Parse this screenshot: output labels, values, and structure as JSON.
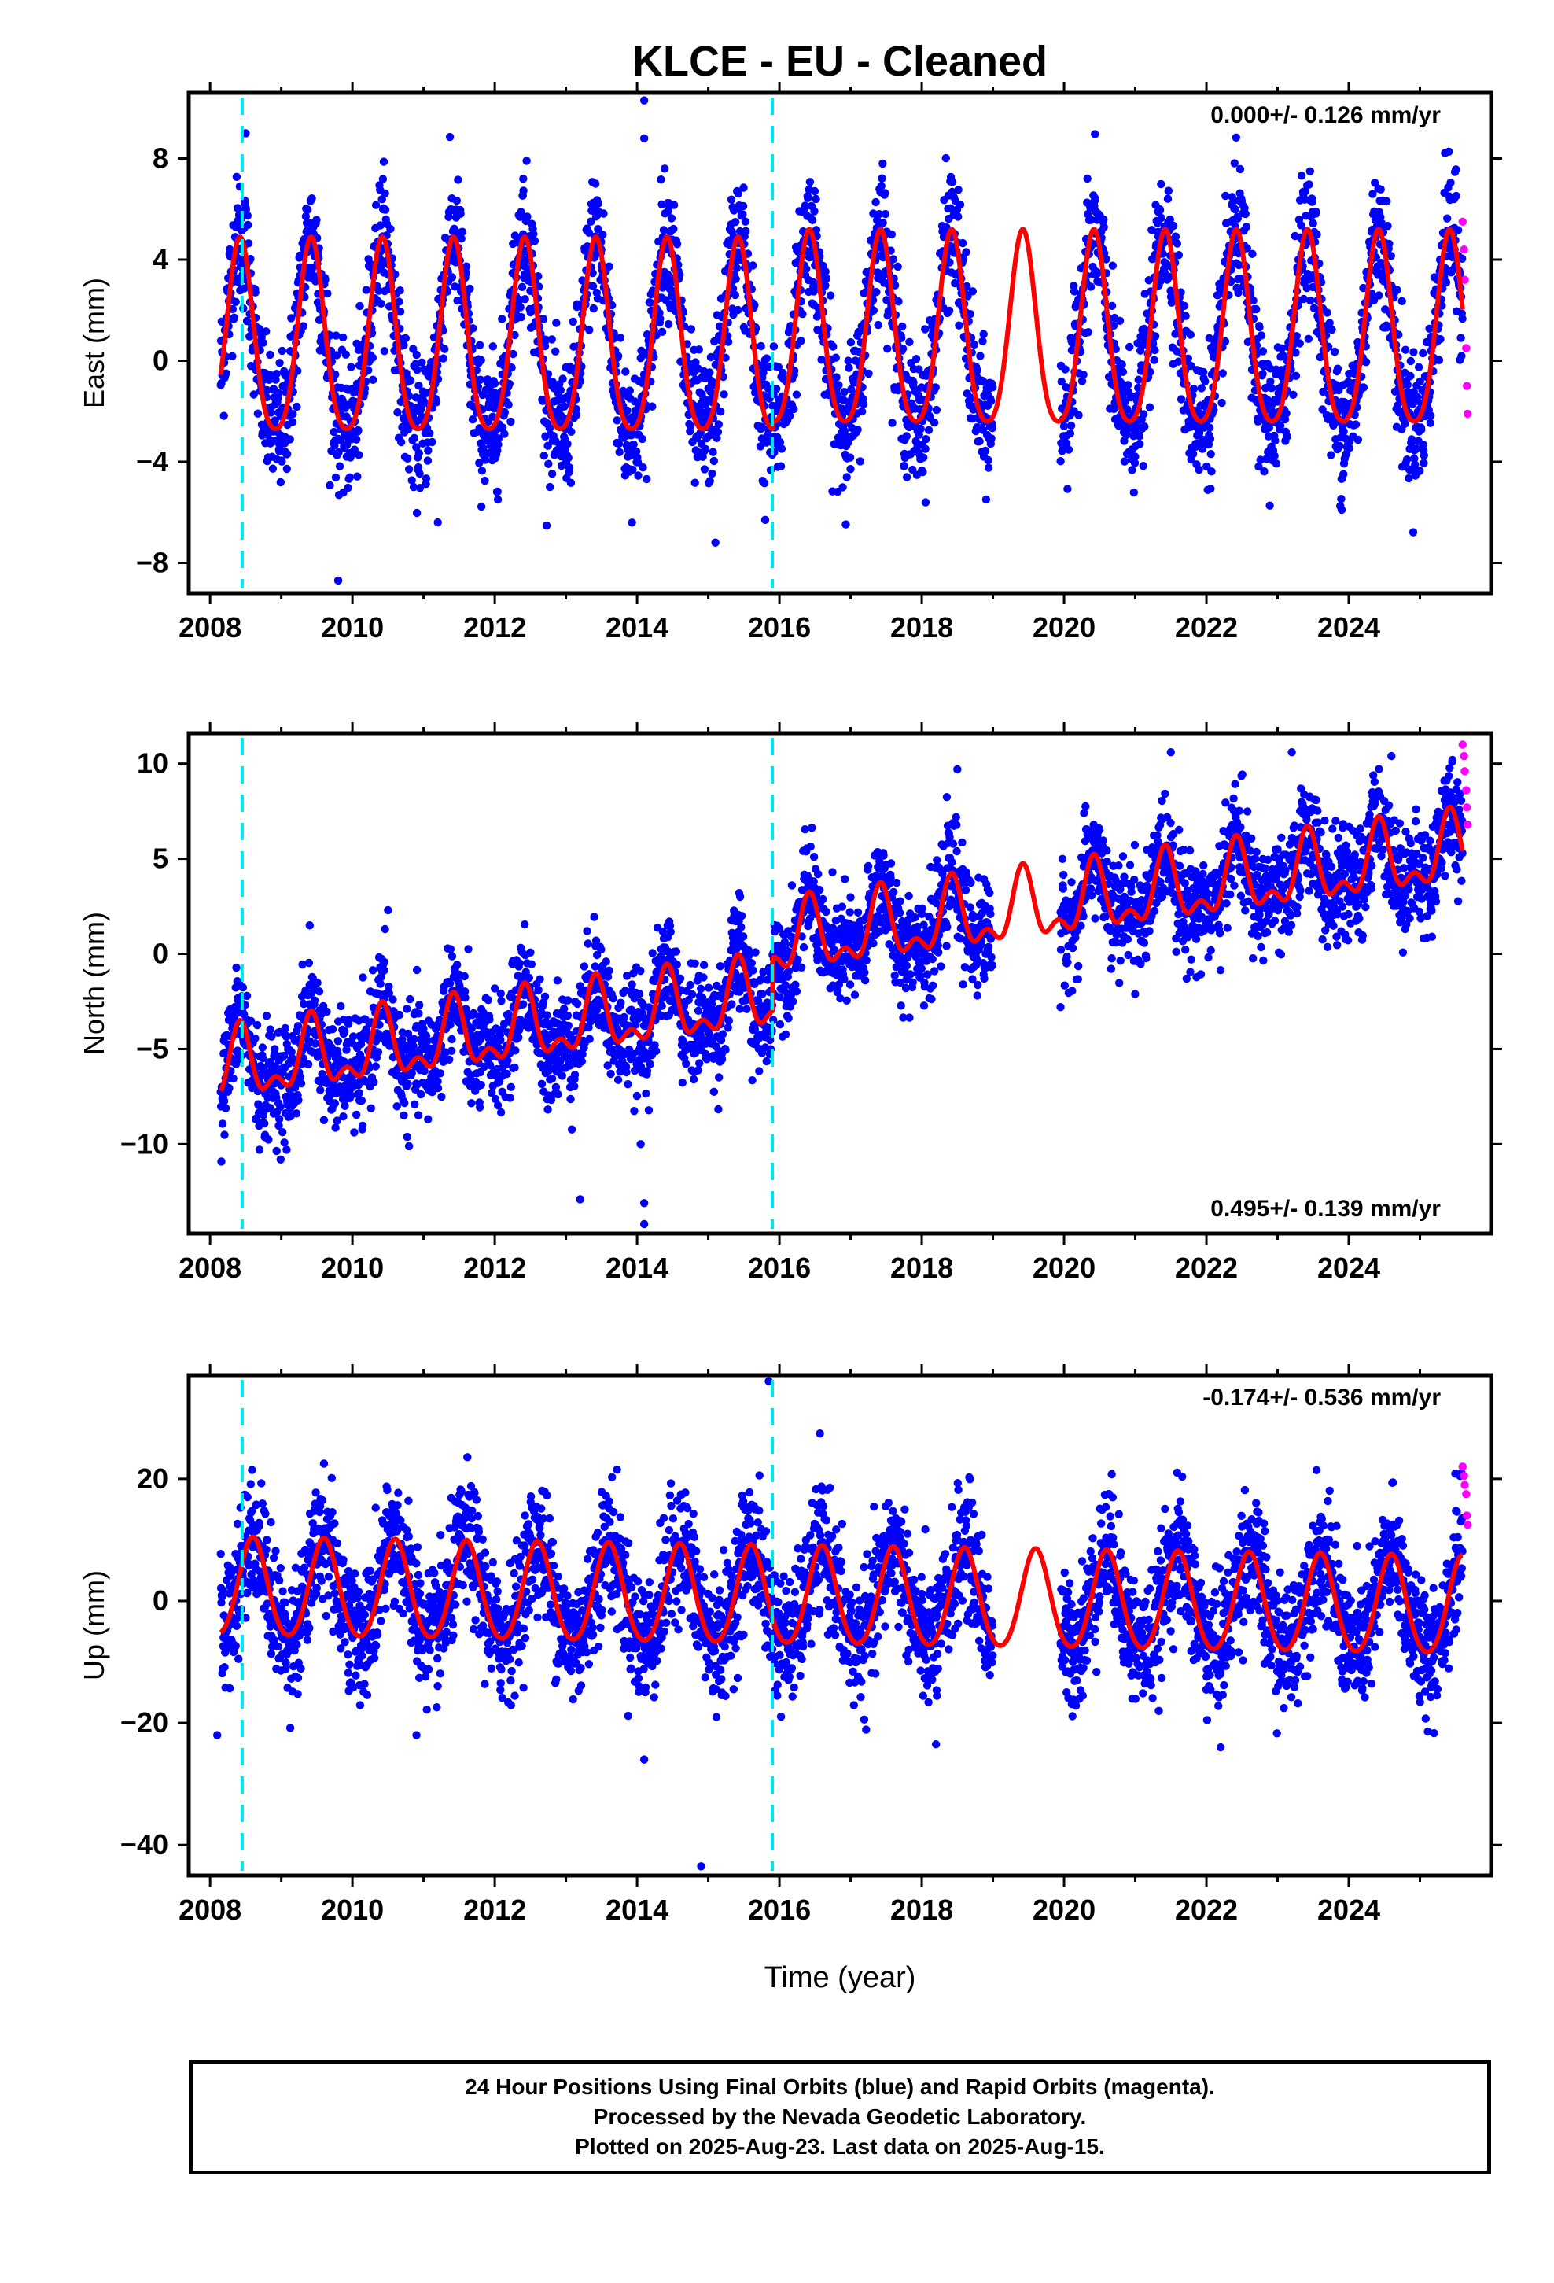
{
  "chart_data": {
    "title": "KLCE  - EU - Cleaned",
    "xlabel": "Time (year)",
    "xlim": [
      2007.7,
      2026.0
    ],
    "xticks": [
      "2008",
      "2010",
      "2012",
      "2014",
      "2016",
      "2018",
      "2020",
      "2022",
      "2024"
    ],
    "xtick_values": [
      2008,
      2010,
      2012,
      2014,
      2016,
      2018,
      2020,
      2022,
      2024
    ],
    "equipment_change_lines": [
      2008.45,
      2015.9
    ],
    "colors": {
      "final_orbits": "#0000ff",
      "rapid_orbits": "#ff00ff",
      "model": "#ff0000",
      "steps": "#00e5ee"
    },
    "panels": [
      {
        "id": "east",
        "type": "scatter",
        "ylabel": "East (mm)",
        "ylim": [
          -9.2,
          10.6
        ],
        "yticks": [
          "8",
          "4",
          "0",
          "−4",
          "−8"
        ],
        "ytick_values": [
          8,
          4,
          0,
          -4,
          -8
        ],
        "velocity": "0.000+/- 0.126 mm/yr",
        "velocity_position": "top-right",
        "model": {
          "trend_mm_per_yr": 0.0,
          "offset_2008": 0.5,
          "annual_amplitude": 3.8,
          "semiannual_amplitude": 0.6,
          "annual_peak_phase": 0.42,
          "steps": [
            {
              "year": 2015.9,
              "value": 0.3
            }
          ],
          "start": 2008.15,
          "end": 2025.6
        },
        "scatter": {
          "noise": 1.3,
          "gaps": [
            [
              2019.0,
              2019.95
            ]
          ]
        },
        "outliers": [
          {
            "x": 2008.5,
            "y": 9.0
          },
          {
            "x": 2009.8,
            "y": -8.7
          },
          {
            "x": 2014.1,
            "y": 10.3
          },
          {
            "x": 2014.1,
            "y": 8.8
          },
          {
            "x": 2015.1,
            "y": -7.2
          },
          {
            "x": 2015.8,
            "y": -6.3
          },
          {
            "x": 2023.9,
            "y": -5.9
          },
          {
            "x": 2011.2,
            "y": -6.4
          },
          {
            "x": 2012.4,
            "y": 7.2
          }
        ],
        "rapid": [
          {
            "x": 2025.6,
            "y": 5.5
          },
          {
            "x": 2025.62,
            "y": 4.4
          },
          {
            "x": 2025.63,
            "y": 3.2
          },
          {
            "x": 2025.65,
            "y": 0.5
          },
          {
            "x": 2025.66,
            "y": -1.0
          },
          {
            "x": 2025.67,
            "y": -2.1
          }
        ]
      },
      {
        "id": "north",
        "type": "scatter",
        "ylabel": "North (mm)",
        "ylim": [
          -14.7,
          11.6
        ],
        "yticks": [
          "10",
          "5",
          "0",
          "−5",
          "−10"
        ],
        "ytick_values": [
          10,
          5,
          0,
          -5,
          -10
        ],
        "velocity": "0.495+/- 0.139 mm/yr",
        "velocity_position": "bottom-right",
        "model": {
          "trend_mm_per_yr": 0.495,
          "offset_2008": -6.2,
          "annual_amplitude": 1.6,
          "semiannual_amplitude": 0.9,
          "annual_peak_phase": 0.42,
          "steps": [
            {
              "year": 2015.9,
              "value": 2.8
            }
          ],
          "start": 2008.15,
          "end": 2025.6
        },
        "scatter": {
          "noise": 1.4,
          "gaps": [
            [
              2019.0,
              2019.95
            ]
          ]
        },
        "outliers": [
          {
            "x": 2013.2,
            "y": -12.9
          },
          {
            "x": 2014.1,
            "y": -14.2
          },
          {
            "x": 2014.1,
            "y": -13.1
          },
          {
            "x": 2014.05,
            "y": -10.0
          },
          {
            "x": 2010.5,
            "y": 2.3
          },
          {
            "x": 2009.4,
            "y": 1.5
          },
          {
            "x": 2018.5,
            "y": 9.7
          },
          {
            "x": 2021.5,
            "y": 10.6
          },
          {
            "x": 2023.2,
            "y": 10.6
          },
          {
            "x": 2024.6,
            "y": 10.4
          },
          {
            "x": 2019.95,
            "y": -2.8
          }
        ],
        "rapid": [
          {
            "x": 2025.6,
            "y": 11.0
          },
          {
            "x": 2025.62,
            "y": 10.4
          },
          {
            "x": 2025.63,
            "y": 9.6
          },
          {
            "x": 2025.65,
            "y": 8.6
          },
          {
            "x": 2025.66,
            "y": 7.7
          },
          {
            "x": 2025.67,
            "y": 6.8
          }
        ]
      },
      {
        "id": "up",
        "type": "scatter",
        "ylabel": "Up (mm)",
        "ylim": [
          -45,
          37
        ],
        "yticks": [
          "20",
          "0",
          "−20",
          "−40"
        ],
        "ytick_values": [
          20,
          0,
          -20,
          -40
        ],
        "velocity": "-0.174+/- 0.536 mm/yr",
        "velocity_position": "top-right",
        "model": {
          "trend_mm_per_yr": -0.174,
          "offset_2008": 1.8,
          "annual_amplitude": 8.0,
          "semiannual_amplitude": 0.8,
          "annual_peak_phase": 0.6,
          "steps": [
            {
              "year": 2015.9,
              "value": 0.0
            }
          ],
          "start": 2008.15,
          "end": 2025.6
        },
        "scatter": {
          "noise": 5.2,
          "gaps": [
            [
              2019.0,
              2019.95
            ]
          ]
        },
        "outliers": [
          {
            "x": 2008.1,
            "y": -22.0
          },
          {
            "x": 2014.1,
            "y": -26.0
          },
          {
            "x": 2014.9,
            "y": -43.5
          },
          {
            "x": 2015.85,
            "y": 36.0
          },
          {
            "x": 2009.6,
            "y": 22.5
          },
          {
            "x": 2018.2,
            "y": -23.5
          },
          {
            "x": 2022.2,
            "y": -24.0
          },
          {
            "x": 2010.9,
            "y": -22.0
          }
        ],
        "rapid": [
          {
            "x": 2025.6,
            "y": 22.0
          },
          {
            "x": 2025.62,
            "y": 20.5
          },
          {
            "x": 2025.63,
            "y": 19.0
          },
          {
            "x": 2025.65,
            "y": 17.5
          },
          {
            "x": 2025.66,
            "y": 14.0
          },
          {
            "x": 2025.67,
            "y": 12.5
          }
        ]
      }
    ]
  },
  "footer": {
    "line1": "24 Hour Positions Using Final Orbits (blue) and Rapid Orbits (magenta).",
    "line2": "Processed by the Nevada Geodetic Laboratory.",
    "line3": "Plotted on 2025-Aug-23. Last data on 2025-Aug-15."
  }
}
